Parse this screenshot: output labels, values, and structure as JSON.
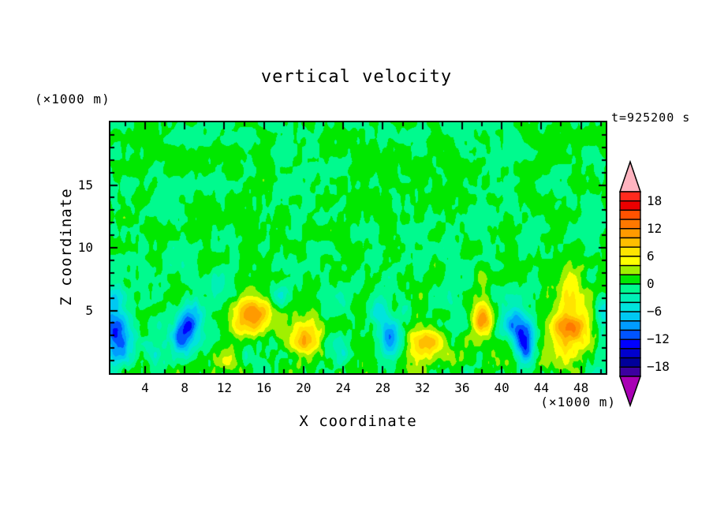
{
  "title": "vertical velocity",
  "time_label": "t=925200 s",
  "axis_unit_top": "(×1000 m)",
  "axis_unit_bottom": "(×1000 m)",
  "x_axis": {
    "label": "X coordinate",
    "major_ticks": [
      4,
      8,
      12,
      16,
      20,
      24,
      28,
      32,
      36,
      40,
      44,
      48
    ],
    "minor_step": 2,
    "range": [
      0.5,
      50.5
    ]
  },
  "z_axis": {
    "label": "Z coordinate",
    "major_ticks": [
      5,
      10,
      15
    ],
    "minor_step": 1,
    "range": [
      0,
      20
    ]
  },
  "colorbar": {
    "labels": [
      18,
      12,
      6,
      0,
      -6,
      -12,
      -18
    ],
    "level_step": 2,
    "level_max": 20,
    "level_min": -20,
    "colors": [
      "#ff2a1e",
      "#ec0000",
      "#ff5200",
      "#ff7800",
      "#ff9a00",
      "#ffbe00",
      "#ffe400",
      "#ffff00",
      "#a0f000",
      "#00e800",
      "#00fa8e",
      "#00f0b6",
      "#00e4dc",
      "#00c8f2",
      "#009cff",
      "#0054ff",
      "#0000ff",
      "#0000ce",
      "#00009a",
      "#3c00a0"
    ],
    "over_color": "#ffb4c0",
    "under_color": "#a800b4"
  },
  "chart_data": {
    "type": "filled-contour",
    "title": "vertical velocity",
    "xlabel": "X coordinate",
    "ylabel": "Z coordinate",
    "x_range": [
      0.5,
      50.5
    ],
    "z_range": [
      0,
      20
    ],
    "contour_interval": 2,
    "value_units": "m/s scale shown on colorbar, levels -20 to 20",
    "features": [
      {
        "x": 1.0,
        "z": 3.0,
        "a": -12,
        "rx": 1.4,
        "rz": 2.3
      },
      {
        "x": 0.8,
        "z": 6.0,
        "a": -4,
        "rx": 1.0,
        "rz": 1.4
      },
      {
        "x": 8.7,
        "z": 4.4,
        "a": -9,
        "rx": 1.2,
        "rz": 1.5
      },
      {
        "x": 7.7,
        "z": 2.8,
        "a": -10,
        "rx": 1.1,
        "rz": 1.3
      },
      {
        "x": 11.4,
        "z": 6.6,
        "a": -4,
        "rx": 0.9,
        "rz": 1.6
      },
      {
        "x": 5.0,
        "z": 1.3,
        "a": -4,
        "rx": 0.8,
        "rz": 0.9
      },
      {
        "x": 17.8,
        "z": 6.2,
        "a": -3,
        "rx": 0.8,
        "rz": 1.2
      },
      {
        "x": 23.8,
        "z": 2.1,
        "a": -4,
        "rx": 0.7,
        "rz": 1.0
      },
      {
        "x": 28.8,
        "z": 2.7,
        "a": -10,
        "rx": 1.2,
        "rz": 1.5
      },
      {
        "x": 27.8,
        "z": 4.9,
        "a": -5,
        "rx": 0.9,
        "rz": 1.1
      },
      {
        "x": 34.8,
        "z": 6.0,
        "a": -3,
        "rx": 0.7,
        "rz": 1.3
      },
      {
        "x": 41.3,
        "z": 4.0,
        "a": -9,
        "rx": 1.1,
        "rz": 1.7
      },
      {
        "x": 42.4,
        "z": 2.4,
        "a": -13,
        "rx": 0.9,
        "rz": 1.4
      },
      {
        "x": 50.3,
        "z": 4.4,
        "a": -5,
        "rx": 1.0,
        "rz": 1.5
      },
      {
        "x": 12.6,
        "z": 1.2,
        "a": 4,
        "rx": 0.9,
        "rz": 0.9
      },
      {
        "x": 14.8,
        "z": 4.6,
        "a": 11,
        "rx": 1.8,
        "rz": 1.7
      },
      {
        "x": 20.2,
        "z": 2.7,
        "a": 11,
        "rx": 1.6,
        "rz": 1.6
      },
      {
        "x": 32.3,
        "z": 2.4,
        "a": 8,
        "rx": 1.9,
        "rz": 1.5
      },
      {
        "x": 38.1,
        "z": 4.4,
        "a": 12,
        "rx": 1.0,
        "rz": 1.3
      },
      {
        "x": 37.9,
        "z": 7.5,
        "a": 3,
        "rx": 0.8,
        "rz": 1.3
      },
      {
        "x": 46.8,
        "z": 3.5,
        "a": 11,
        "rx": 2.0,
        "rz": 2.2
      },
      {
        "x": 46.8,
        "z": 6.9,
        "a": 4,
        "rx": 1.4,
        "rz": 1.7
      }
    ],
    "turbulence": {
      "seed": 7,
      "coarse_grid": [
        33,
        17
      ],
      "fine_grid": [
        111,
        27
      ],
      "amp_coarse": 1.45,
      "amp_fine": 1.0,
      "height_decay": 7,
      "height_base": 0.8,
      "height_boost": 0.8
    }
  }
}
